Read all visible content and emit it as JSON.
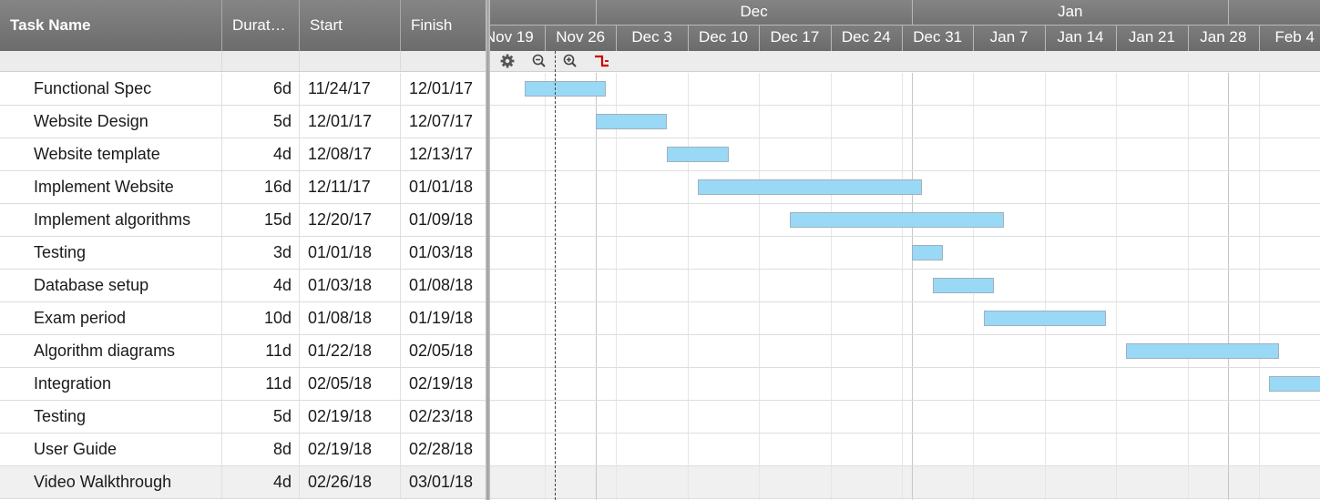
{
  "columns": {
    "task_name": "Task Name",
    "duration": "Durat…",
    "start": "Start",
    "finish": "Finish"
  },
  "tasks": [
    {
      "name": "Functional Spec",
      "duration": "6d",
      "start": "11/24/17",
      "finish": "12/01/17"
    },
    {
      "name": "Website Design",
      "duration": "5d",
      "start": "12/01/17",
      "finish": "12/07/17"
    },
    {
      "name": "Website template",
      "duration": "4d",
      "start": "12/08/17",
      "finish": "12/13/17"
    },
    {
      "name": "Implement Website",
      "duration": "16d",
      "start": "12/11/17",
      "finish": "01/01/18"
    },
    {
      "name": "Implement algorithms",
      "duration": "15d",
      "start": "12/20/17",
      "finish": "01/09/18"
    },
    {
      "name": "Testing",
      "duration": "3d",
      "start": "01/01/18",
      "finish": "01/03/18"
    },
    {
      "name": "Database setup",
      "duration": "4d",
      "start": "01/03/18",
      "finish": "01/08/18"
    },
    {
      "name": "Exam period",
      "duration": "10d",
      "start": "01/08/18",
      "finish": "01/19/18"
    },
    {
      "name": "Algorithm diagrams",
      "duration": "11d",
      "start": "01/22/18",
      "finish": "02/05/18"
    },
    {
      "name": "Integration",
      "duration": "11d",
      "start": "02/05/18",
      "finish": "02/19/18"
    },
    {
      "name": "Testing",
      "duration": "5d",
      "start": "02/19/18",
      "finish": "02/23/18"
    },
    {
      "name": "User Guide",
      "duration": "8d",
      "start": "02/19/18",
      "finish": "02/28/18"
    },
    {
      "name": "Video Walkthrough",
      "duration": "4d",
      "start": "02/26/18",
      "finish": "03/01/18"
    }
  ],
  "timeline": {
    "months": [
      "Dec",
      "Jan"
    ],
    "weeks": [
      "Nov 19",
      "Nov 26",
      "Dec 3",
      "Dec 10",
      "Dec 17",
      "Dec 24",
      "Dec 31",
      "Jan 7",
      "Jan 14",
      "Jan 21",
      "Jan 28",
      "Feb 4"
    ],
    "today_marker": "2017-11-27"
  },
  "toolbar": {
    "icons": [
      "gear-icon",
      "zoom-out-icon",
      "zoom-in-icon",
      "critical-path-icon"
    ]
  },
  "colors": {
    "bar_fill": "#99d9f6",
    "bar_border": "#9fb0bd",
    "header_bg": "#777777",
    "critical_icon": "#cc0000"
  }
}
